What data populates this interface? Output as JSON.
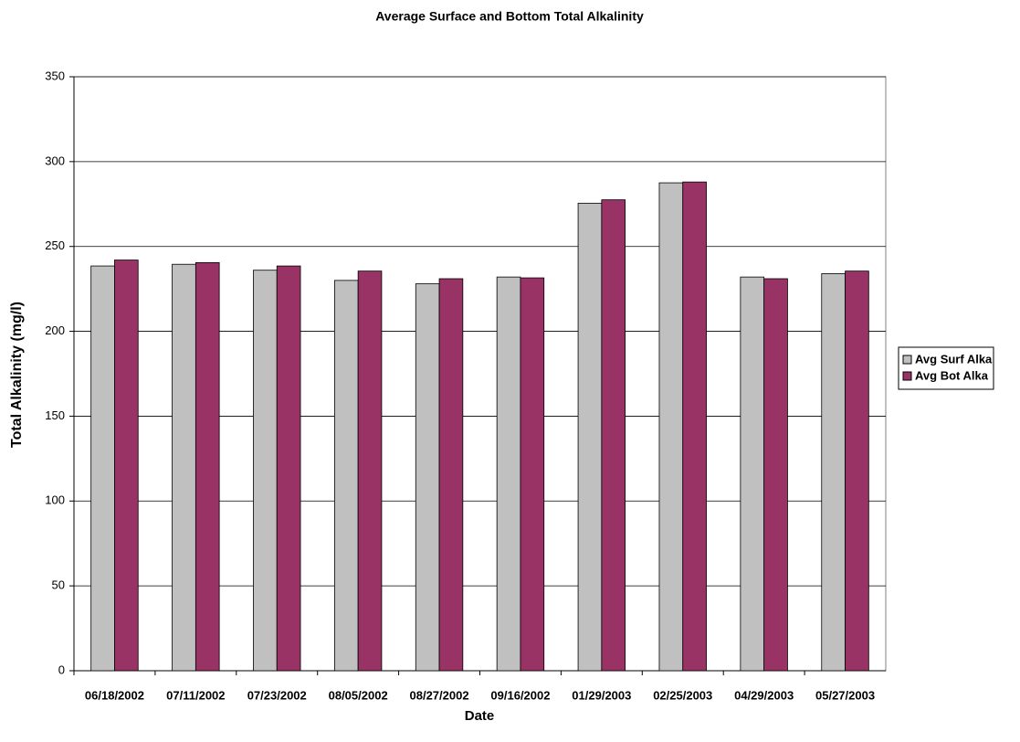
{
  "chart_data": {
    "type": "bar",
    "title": "Average Surface and Bottom Total Alkalinity",
    "x_label": "Date",
    "y_label": "Total Alkalinity (mg/l)",
    "categories": [
      "06/18/2002",
      "07/11/2002",
      "07/23/2002",
      "08/05/2002",
      "08/27/2002",
      "09/16/2002",
      "01/29/2003",
      "02/25/2003",
      "04/29/2003",
      "05/27/2003"
    ],
    "series": [
      {
        "name": "Avg Surf Alka",
        "color": "#c0c0c0",
        "values": [
          238.5,
          239.5,
          236,
          230,
          228,
          232,
          275.5,
          287.5,
          232,
          234
        ]
      },
      {
        "name": "Avg Bot Alka",
        "color": "#993366",
        "values": [
          242,
          240.5,
          238.5,
          235.5,
          231,
          231.5,
          277.5,
          288,
          231,
          235.5
        ]
      }
    ],
    "ylim": [
      0,
      350
    ],
    "yticks": [
      0,
      50,
      100,
      150,
      200,
      250,
      300,
      350
    ],
    "grid": true,
    "legend": "right"
  }
}
